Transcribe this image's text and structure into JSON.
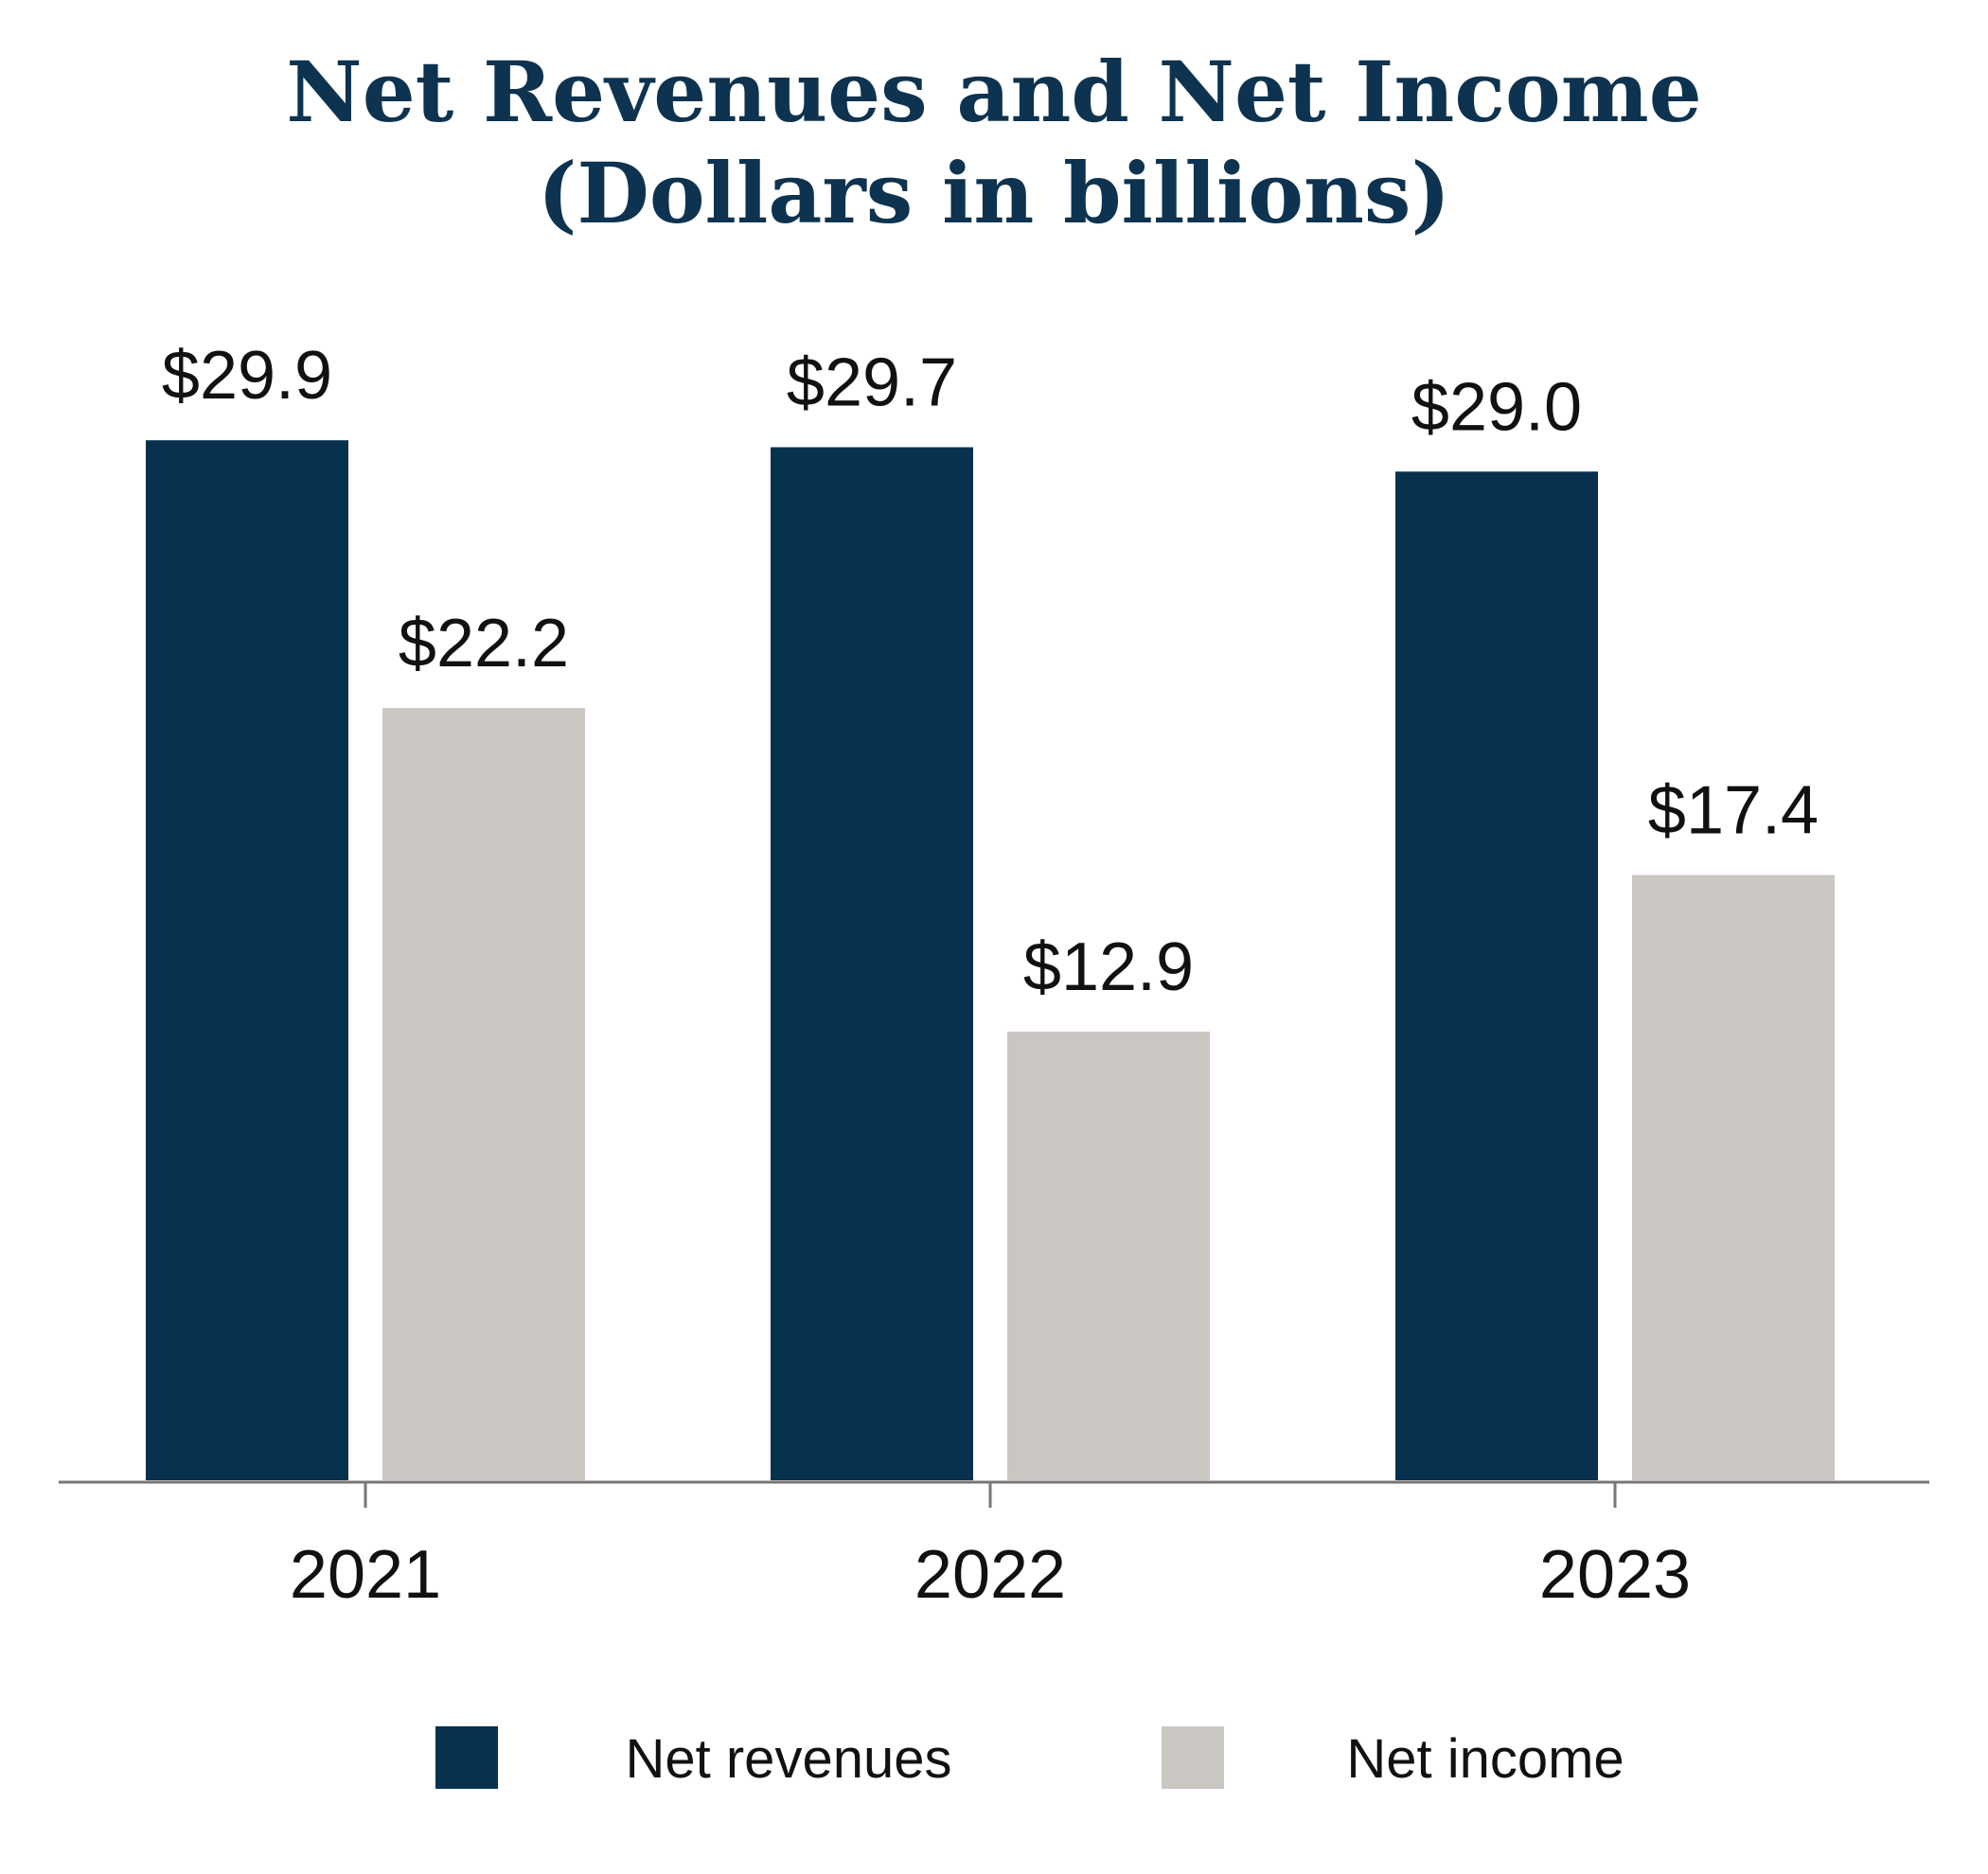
{
  "chart_data": {
    "type": "bar",
    "title": "Net Revenues and Net Income",
    "subtitle": "(Dollars in billions)",
    "categories": [
      "2021",
      "2022",
      "2023"
    ],
    "series": [
      {
        "name": "Net revenues",
        "values": [
          29.9,
          29.7,
          29.0
        ],
        "labels": [
          "$29.9",
          "$29.7",
          "$29.0"
        ],
        "color": "#08314d"
      },
      {
        "name": "Net income",
        "values": [
          22.2,
          12.9,
          17.4
        ],
        "labels": [
          "$22.2",
          "$12.9",
          "$17.4"
        ],
        "color": "#cac7c2"
      }
    ],
    "ylim": [
      0,
      32
    ],
    "xlabel": "",
    "ylabel": "",
    "grid": false,
    "legend_position": "bottom",
    "colors": {
      "title": "#0d3350",
      "axis": "#777777",
      "text": "#111111"
    }
  }
}
